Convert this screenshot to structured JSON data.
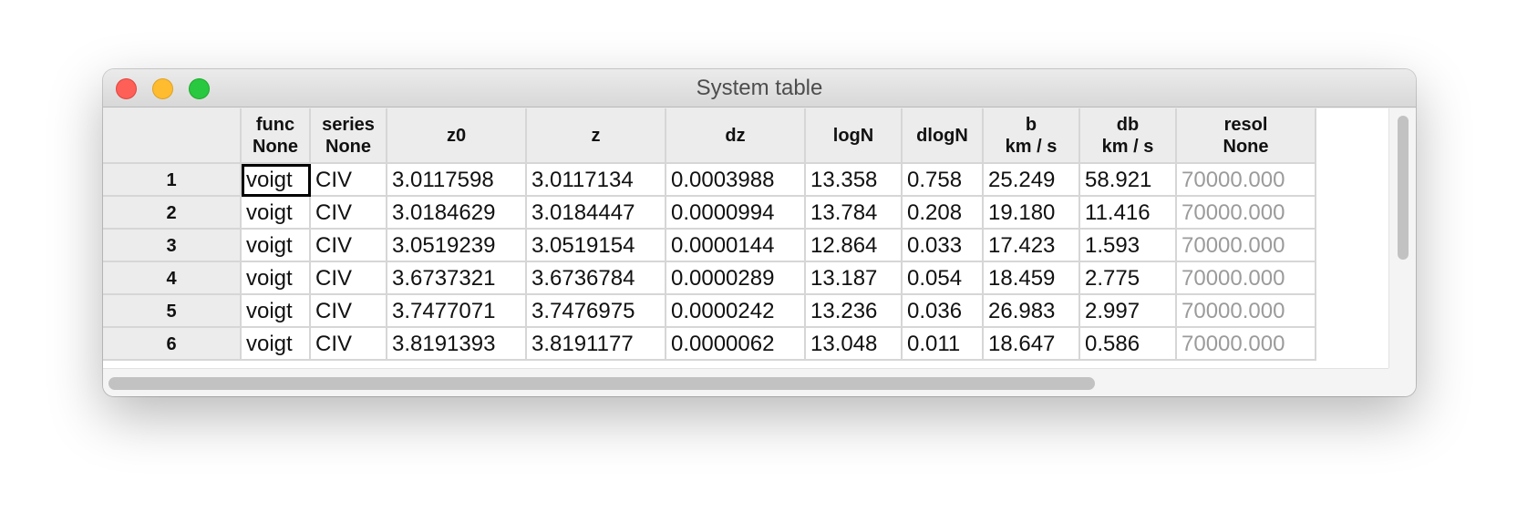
{
  "window": {
    "title": "System table"
  },
  "columns": [
    {
      "name": "func",
      "unit": "None"
    },
    {
      "name": "series",
      "unit": "None"
    },
    {
      "name": "z0",
      "unit": ""
    },
    {
      "name": "z",
      "unit": ""
    },
    {
      "name": "dz",
      "unit": ""
    },
    {
      "name": "logN",
      "unit": ""
    },
    {
      "name": "dlogN",
      "unit": ""
    },
    {
      "name": "b",
      "unit": "km / s"
    },
    {
      "name": "db",
      "unit": "km / s"
    },
    {
      "name": "resol",
      "unit": "None"
    }
  ],
  "rows": [
    {
      "label": "1",
      "cells": [
        "voigt",
        "CIV",
        "3.0117598",
        "3.0117134",
        "0.0003988",
        "13.358",
        "0.758",
        "25.249",
        "58.921",
        "70000.000"
      ]
    },
    {
      "label": "2",
      "cells": [
        "voigt",
        "CIV",
        "3.0184629",
        "3.0184447",
        "0.0000994",
        "13.784",
        "0.208",
        "19.180",
        "11.416",
        "70000.000"
      ]
    },
    {
      "label": "3",
      "cells": [
        "voigt",
        "CIV",
        "3.0519239",
        "3.0519154",
        "0.0000144",
        "12.864",
        "0.033",
        "17.423",
        "1.593",
        "70000.000"
      ]
    },
    {
      "label": "4",
      "cells": [
        "voigt",
        "CIV",
        "3.6737321",
        "3.6736784",
        "0.0000289",
        "13.187",
        "0.054",
        "18.459",
        "2.775",
        "70000.000"
      ]
    },
    {
      "label": "5",
      "cells": [
        "voigt",
        "CIV",
        "3.7477071",
        "3.7476975",
        "0.0000242",
        "13.236",
        "0.036",
        "26.983",
        "2.997",
        "70000.000"
      ]
    },
    {
      "label": "6",
      "cells": [
        "voigt",
        "CIV",
        "3.8191393",
        "3.8191177",
        "0.0000062",
        "13.048",
        "0.011",
        "18.647",
        "0.586",
        "70000.000"
      ]
    }
  ],
  "selected_cell": {
    "row": 0,
    "col": 0
  },
  "grayed_column": 9,
  "scroll": {
    "vertical_position": 0.0,
    "horizontal_position": 0.0
  },
  "colors": {
    "close": "#fe5f57",
    "minimize": "#febc2e",
    "maximize": "#28c840",
    "header_bg": "#ececec",
    "grid": "#d6d6d6",
    "muted_text": "#9b9b9b"
  }
}
